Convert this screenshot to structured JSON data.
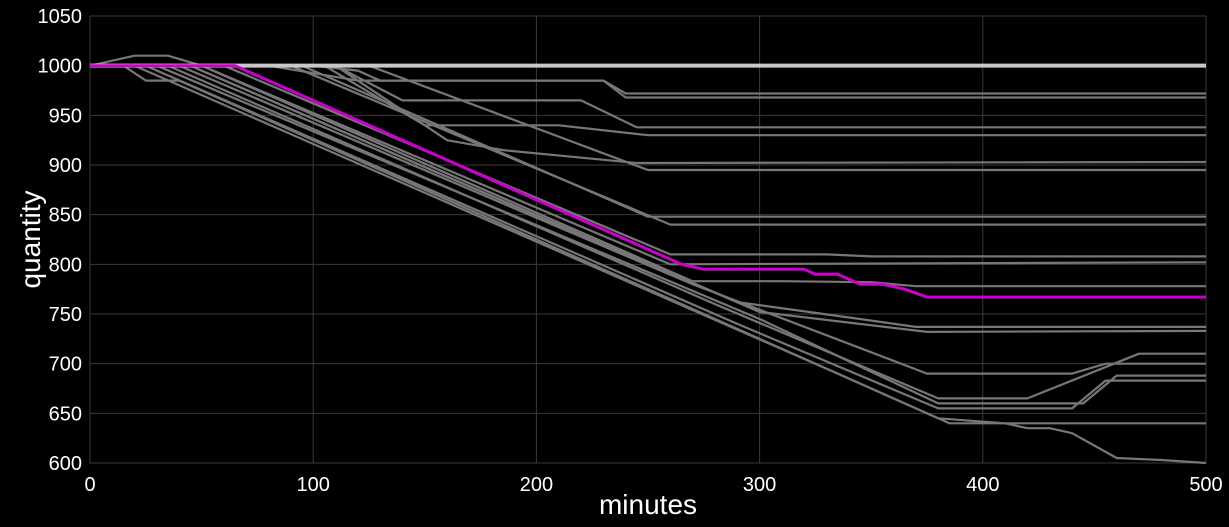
{
  "chart_data": {
    "type": "line",
    "title": "",
    "xlabel": "minutes",
    "ylabel": "quantity",
    "xlim": [
      0,
      500
    ],
    "ylim": [
      600,
      1050
    ],
    "x_ticks": [
      0,
      100,
      200,
      300,
      400,
      500
    ],
    "y_ticks": [
      600,
      650,
      700,
      750,
      800,
      850,
      900,
      950,
      1000,
      1050
    ],
    "grid": true,
    "legend": "none",
    "colors": {
      "background": "#000000",
      "grid": "#3a3a3a",
      "series": "#777777",
      "highlight": "#cc00cc",
      "baseline": "#c8c8c8",
      "text": "#ffffff"
    },
    "baseline": {
      "value": 1000
    },
    "highlight_index": 0,
    "series": [
      {
        "points": [
          [
            0,
            1000
          ],
          [
            65,
            1000
          ],
          [
            265,
            800
          ],
          [
            275,
            795
          ],
          [
            320,
            795
          ],
          [
            325,
            790
          ],
          [
            335,
            790
          ],
          [
            340,
            785
          ],
          [
            345,
            780
          ],
          [
            355,
            780
          ],
          [
            365,
            775
          ],
          [
            375,
            767
          ],
          [
            500,
            767
          ]
        ]
      },
      {
        "points": [
          [
            0,
            1000
          ],
          [
            80,
            1000
          ],
          [
            120,
            985
          ],
          [
            230,
            985
          ],
          [
            240,
            972
          ],
          [
            500,
            972
          ]
        ]
      },
      {
        "points": [
          [
            0,
            1000
          ],
          [
            100,
            1000
          ],
          [
            120,
            995
          ],
          [
            130,
            985
          ],
          [
            230,
            985
          ],
          [
            240,
            968
          ],
          [
            500,
            968
          ]
        ]
      },
      {
        "points": [
          [
            0,
            1000
          ],
          [
            110,
            1000
          ],
          [
            140,
            965
          ],
          [
            220,
            965
          ],
          [
            245,
            938
          ],
          [
            500,
            938
          ]
        ]
      },
      {
        "points": [
          [
            0,
            1000
          ],
          [
            105,
            1000
          ],
          [
            150,
            940
          ],
          [
            210,
            940
          ],
          [
            250,
            930
          ],
          [
            500,
            930
          ]
        ]
      },
      {
        "points": [
          [
            0,
            1000
          ],
          [
            110,
            1000
          ],
          [
            160,
            925
          ],
          [
            185,
            915
          ],
          [
            245,
            902
          ],
          [
            500,
            903
          ]
        ]
      },
      {
        "points": [
          [
            0,
            1000
          ],
          [
            125,
            1000
          ],
          [
            250,
            895
          ],
          [
            500,
            895
          ]
        ]
      },
      {
        "points": [
          [
            0,
            1000
          ],
          [
            95,
            1000
          ],
          [
            250,
            848
          ],
          [
            500,
            848
          ]
        ]
      },
      {
        "points": [
          [
            0,
            1000
          ],
          [
            90,
            1000
          ],
          [
            260,
            840
          ],
          [
            500,
            840
          ]
        ]
      },
      {
        "points": [
          [
            0,
            1000
          ],
          [
            60,
            1000
          ],
          [
            260,
            810
          ],
          [
            330,
            810
          ],
          [
            350,
            808
          ],
          [
            500,
            808
          ]
        ]
      },
      {
        "points": [
          [
            0,
            1000
          ],
          [
            50,
            1000
          ],
          [
            260,
            800
          ],
          [
            500,
            802
          ]
        ]
      },
      {
        "points": [
          [
            0,
            1000
          ],
          [
            20,
            1010
          ],
          [
            35,
            1010
          ],
          [
            50,
            1000
          ],
          [
            270,
            783
          ],
          [
            310,
            783
          ],
          [
            350,
            782
          ],
          [
            370,
            778
          ],
          [
            500,
            778
          ]
        ]
      },
      {
        "points": [
          [
            0,
            1000
          ],
          [
            45,
            1000
          ],
          [
            290,
            762
          ],
          [
            345,
            745
          ],
          [
            370,
            737
          ],
          [
            500,
            737
          ]
        ]
      },
      {
        "points": [
          [
            0,
            1000
          ],
          [
            45,
            1000
          ],
          [
            300,
            752
          ],
          [
            375,
            732
          ],
          [
            500,
            733
          ]
        ]
      },
      {
        "points": [
          [
            0,
            1000
          ],
          [
            40,
            1000
          ],
          [
            270,
            780
          ],
          [
            375,
            690
          ],
          [
            440,
            690
          ],
          [
            455,
            700
          ],
          [
            500,
            700
          ]
        ]
      },
      {
        "points": [
          [
            0,
            1000
          ],
          [
            35,
            1000
          ],
          [
            280,
            760
          ],
          [
            380,
            665
          ],
          [
            420,
            665
          ],
          [
            470,
            710
          ],
          [
            500,
            710
          ]
        ]
      },
      {
        "points": [
          [
            0,
            1000
          ],
          [
            30,
            1000
          ],
          [
            300,
            745
          ],
          [
            380,
            660
          ],
          [
            445,
            660
          ],
          [
            460,
            688
          ],
          [
            500,
            688
          ]
        ]
      },
      {
        "points": [
          [
            0,
            1000
          ],
          [
            25,
            1000
          ],
          [
            290,
            740
          ],
          [
            380,
            655
          ],
          [
            440,
            655
          ],
          [
            455,
            683
          ],
          [
            500,
            683
          ]
        ]
      },
      {
        "points": [
          [
            0,
            1000
          ],
          [
            20,
            1000
          ],
          [
            335,
            690
          ],
          [
            385,
            640
          ],
          [
            420,
            640
          ],
          [
            450,
            640
          ],
          [
            500,
            640
          ]
        ]
      },
      {
        "points": [
          [
            0,
            1000
          ],
          [
            15,
            1000
          ],
          [
            25,
            985
          ],
          [
            40,
            985
          ],
          [
            380,
            645
          ],
          [
            410,
            640
          ],
          [
            420,
            635
          ],
          [
            430,
            635
          ],
          [
            440,
            630
          ],
          [
            460,
            605
          ],
          [
            480,
            603
          ],
          [
            500,
            600
          ]
        ]
      }
    ]
  }
}
